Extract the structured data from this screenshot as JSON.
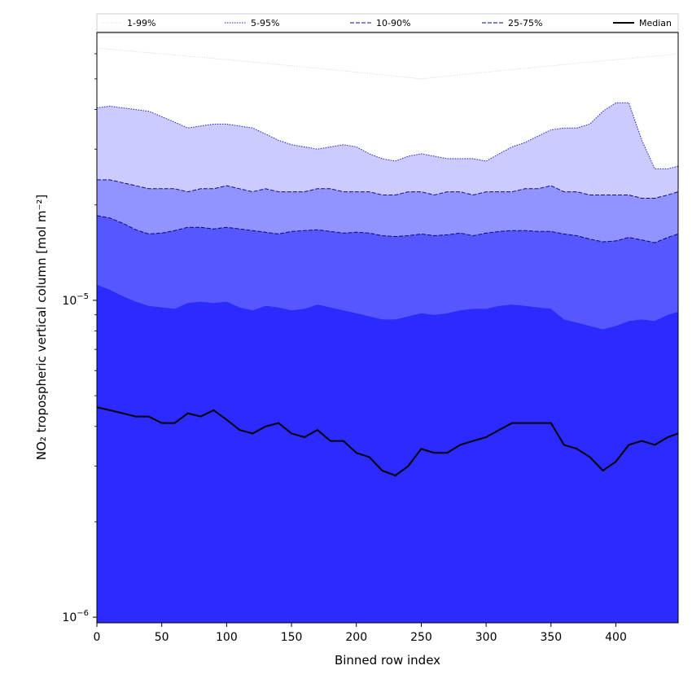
{
  "chart_data": {
    "type": "area",
    "xlabel": "Binned row index",
    "ylabel": "NO₂ tropospheric vertical column [mol m⁻²]",
    "xlim": [
      0,
      448
    ],
    "ylim": [
      9.6e-07,
      7e-05
    ],
    "yscale": "log",
    "grid": false,
    "legend_placement": "top",
    "x_ticks": [
      {
        "value": 0,
        "label": "0"
      },
      {
        "value": 50,
        "label": "50"
      },
      {
        "value": 100,
        "label": "100"
      },
      {
        "value": 150,
        "label": "150"
      },
      {
        "value": 200,
        "label": "200"
      },
      {
        "value": 250,
        "label": "250"
      },
      {
        "value": 300,
        "label": "300"
      },
      {
        "value": 350,
        "label": "350"
      },
      {
        "value": 400,
        "label": "400"
      }
    ],
    "y_ticks": [
      {
        "value": 1e-05,
        "base": "10",
        "exp": "−5"
      },
      {
        "value": 1e-06,
        "base": "10",
        "exp": "−6"
      }
    ],
    "x": [
      0,
      10,
      20,
      30,
      40,
      50,
      60,
      70,
      80,
      90,
      100,
      110,
      120,
      130,
      140,
      150,
      160,
      170,
      180,
      190,
      200,
      210,
      220,
      230,
      240,
      250,
      260,
      270,
      280,
      290,
      300,
      310,
      320,
      330,
      340,
      350,
      360,
      370,
      380,
      390,
      400,
      410,
      420,
      430,
      440,
      448
    ],
    "series": [
      {
        "name": "1-99%",
        "line_color": "#dcdcf4",
        "line_style": "dotted",
        "values": [
          6.25e-05,
          6.2e-05,
          6.15e-05,
          6.1e-05,
          6.05e-05,
          6e-05,
          5.95e-05,
          5.9e-05,
          5.85e-05,
          5.8e-05,
          5.75e-05,
          5.7e-05,
          5.65e-05,
          5.6e-05,
          5.55e-05,
          5.5e-05,
          5.45e-05,
          5.4e-05,
          5.35e-05,
          5.3e-05,
          5.25e-05,
          5.2e-05,
          5.15e-05,
          5.1e-05,
          5.05e-05,
          5e-05,
          5.05e-05,
          5.1e-05,
          5.15e-05,
          5.2e-05,
          5.25e-05,
          5.3e-05,
          5.35e-05,
          5.4e-05,
          5.45e-05,
          5.5e-05,
          5.55e-05,
          5.6e-05,
          5.65e-05,
          5.7e-05,
          5.75e-05,
          5.8e-05,
          5.85e-05,
          5.9e-05,
          5.95e-05,
          6e-05
        ]
      },
      {
        "name": "5-95%",
        "line_color": "#2020c0",
        "line_style": "dotted",
        "values": [
          4.05e-05,
          4.1e-05,
          4.05e-05,
          4e-05,
          3.95e-05,
          3.8e-05,
          3.65e-05,
          3.5e-05,
          3.55e-05,
          3.6e-05,
          3.6e-05,
          3.55e-05,
          3.5e-05,
          3.35e-05,
          3.2e-05,
          3.1e-05,
          3.05e-05,
          3e-05,
          3.05e-05,
          3.1e-05,
          3.05e-05,
          2.9e-05,
          2.8e-05,
          2.75e-05,
          2.85e-05,
          2.9e-05,
          2.85e-05,
          2.8e-05,
          2.8e-05,
          2.8e-05,
          2.75e-05,
          2.9e-05,
          3.05e-05,
          3.15e-05,
          3.3e-05,
          3.45e-05,
          3.5e-05,
          3.5e-05,
          3.6e-05,
          3.95e-05,
          4.2e-05,
          4.2e-05,
          3.2e-05,
          2.6e-05,
          2.6e-05,
          2.65e-05
        ]
      },
      {
        "name": "10-90%",
        "line_color": "#10108a",
        "line_style": "dashed",
        "values": [
          2.4e-05,
          2.4e-05,
          2.35e-05,
          2.3e-05,
          2.25e-05,
          2.25e-05,
          2.25e-05,
          2.2e-05,
          2.25e-05,
          2.25e-05,
          2.3e-05,
          2.25e-05,
          2.2e-05,
          2.25e-05,
          2.2e-05,
          2.2e-05,
          2.2e-05,
          2.25e-05,
          2.25e-05,
          2.2e-05,
          2.2e-05,
          2.2e-05,
          2.15e-05,
          2.15e-05,
          2.2e-05,
          2.2e-05,
          2.15e-05,
          2.2e-05,
          2.2e-05,
          2.15e-05,
          2.2e-05,
          2.2e-05,
          2.2e-05,
          2.25e-05,
          2.25e-05,
          2.3e-05,
          2.2e-05,
          2.2e-05,
          2.15e-05,
          2.15e-05,
          2.15e-05,
          2.15e-05,
          2.1e-05,
          2.1e-05,
          2.15e-05,
          2.2e-05
        ]
      },
      {
        "name": "25-75%",
        "line_color": "#0a0a70",
        "line_style": "dashed",
        "values": [
          1.85e-05,
          1.82e-05,
          1.75e-05,
          1.67e-05,
          1.62e-05,
          1.63e-05,
          1.66e-05,
          1.7e-05,
          1.7e-05,
          1.68e-05,
          1.7e-05,
          1.68e-05,
          1.66e-05,
          1.64e-05,
          1.62e-05,
          1.65e-05,
          1.66e-05,
          1.67e-05,
          1.65e-05,
          1.63e-05,
          1.64e-05,
          1.63e-05,
          1.6e-05,
          1.59e-05,
          1.6e-05,
          1.62e-05,
          1.6e-05,
          1.61e-05,
          1.63e-05,
          1.6e-05,
          1.63e-05,
          1.65e-05,
          1.66e-05,
          1.66e-05,
          1.65e-05,
          1.65e-05,
          1.62e-05,
          1.6e-05,
          1.56e-05,
          1.53e-05,
          1.54e-05,
          1.58e-05,
          1.55e-05,
          1.52e-05,
          1.58e-05,
          1.62e-05
        ]
      },
      {
        "name": "Median",
        "line_color": "#000000",
        "line_style": "solid",
        "values": [
          4.6e-06,
          4.5e-06,
          4.4e-06,
          4.3e-06,
          4.3e-06,
          4.1e-06,
          4.1e-06,
          4.4e-06,
          4.3e-06,
          4.5e-06,
          4.2e-06,
          3.9e-06,
          3.8e-06,
          4e-06,
          4.1e-06,
          3.8e-06,
          3.7e-06,
          3.9e-06,
          3.6e-06,
          3.6e-06,
          3.3e-06,
          3.2e-06,
          2.9e-06,
          2.8e-06,
          3e-06,
          3.4e-06,
          3.3e-06,
          3.3e-06,
          3.5e-06,
          3.6e-06,
          3.7e-06,
          3.9e-06,
          4.1e-06,
          4.1e-06,
          4.1e-06,
          4.1e-06,
          3.5e-06,
          3.4e-06,
          3.2e-06,
          2.9e-06,
          3.1e-06,
          3.5e-06,
          3.6e-06,
          3.5e-06,
          3.7e-06,
          3.8e-06
        ]
      }
    ],
    "bands": [
      {
        "legend": "1-99%",
        "lower": "floor",
        "upper": "1-99%",
        "color": "#ffffff"
      },
      {
        "legend": "5-95%",
        "lower": "floor",
        "upper": "5-95%",
        "color": "#cbcbff"
      },
      {
        "legend": "10-90%",
        "lower": "floor",
        "upper": "10-90%",
        "color": "#9393ff"
      },
      {
        "legend": "25-75%",
        "lower": "floor",
        "upper": "25-75%",
        "color": "#5757ff"
      },
      {
        "legend": "Median",
        "lower": "floor",
        "upper": "25-75% lower envelope",
        "color": "#2b2bff",
        "upper_values": [
          1.12e-05,
          1.08e-05,
          1.03e-05,
          9.9e-06,
          9.6e-06,
          9.5e-06,
          9.4e-06,
          9.8e-06,
          9.9e-06,
          9.8e-06,
          9.9e-06,
          9.5e-06,
          9.3e-06,
          9.6e-06,
          9.5e-06,
          9.3e-06,
          9.4e-06,
          9.7e-06,
          9.5e-06,
          9.3e-06,
          9.1e-06,
          8.9e-06,
          8.7e-06,
          8.7e-06,
          8.9e-06,
          9.1e-06,
          9e-06,
          9.1e-06,
          9.3e-06,
          9.4e-06,
          9.4e-06,
          9.6e-06,
          9.7e-06,
          9.6e-06,
          9.5e-06,
          9.4e-06,
          8.7e-06,
          8.5e-06,
          8.3e-06,
          8.1e-06,
          8.3e-06,
          8.6e-06,
          8.7e-06,
          8.6e-06,
          9e-06,
          9.2e-06
        ]
      }
    ]
  }
}
